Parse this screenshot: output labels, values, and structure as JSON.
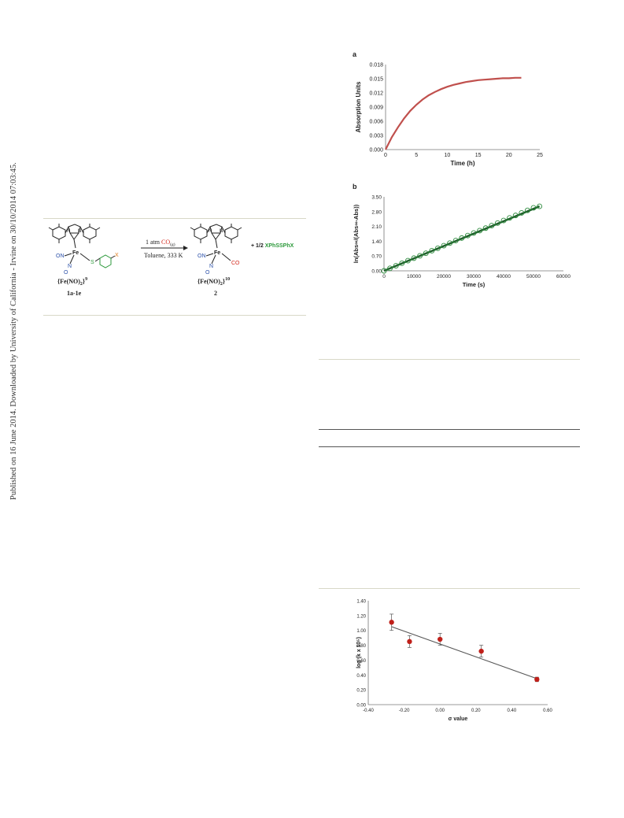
{
  "sidebar": {
    "text": "Published on 16 June 2014. Downloaded by University of California - Irvine on 30/10/2014 07:03:45."
  },
  "scheme": {
    "reagent_text": "1 atm ",
    "reagent_co": "CO",
    "reagent_sub": "(g)",
    "conditions": "Toluene, 333 K",
    "reactant_formula": "{Fe(NO)",
    "reactant_formula_tail": "2",
    "reactant_charge": "}",
    "reactant_count": "9",
    "reactant_label": "1a-1e",
    "product_formula": "{Fe(NO)",
    "product_formula_tail": "2",
    "product_charge": "}",
    "product_count": "10",
    "product_label": "2",
    "byproduct_prefix": "+ 1/2 ",
    "byproduct": "XPhSSPhX",
    "atom_fe": "Fe",
    "atom_on": "ON",
    "atom_n": "N",
    "atom_o": "O",
    "atom_s": "S",
    "atom_x": "X",
    "atom_co": "CO",
    "atom_n_ring": "N",
    "colors": {
      "blue": "#2a4fa8",
      "red": "#d42a1e",
      "green": "#2e9a3c",
      "orange": "#e07a1a"
    }
  },
  "chart_data": [
    {
      "panel_label": "a",
      "type": "line",
      "xlabel": "Time (h)",
      "ylabel": "Absorption Units",
      "xlim": [
        0,
        25
      ],
      "ylim": [
        0,
        0.018
      ],
      "x_ticks": [
        "0",
        "5",
        "10",
        "15",
        "20",
        "25"
      ],
      "y_ticks": [
        "0.000",
        "0.003",
        "0.006",
        "0.009",
        "0.012",
        "0.015",
        "0.018"
      ],
      "series": [
        {
          "color": "#c0504d",
          "x": [
            0,
            1,
            2,
            3,
            4,
            5,
            6,
            7,
            8,
            9,
            10,
            11,
            12,
            13,
            14,
            15,
            16,
            17,
            18,
            19,
            20,
            21,
            22
          ],
          "y": [
            0.0,
            0.0026,
            0.0047,
            0.0066,
            0.0082,
            0.0095,
            0.0106,
            0.0115,
            0.0122,
            0.0128,
            0.0133,
            0.0137,
            0.014,
            0.0143,
            0.0145,
            0.0147,
            0.0148,
            0.0149,
            0.015,
            0.0151,
            0.0151,
            0.0152,
            0.0152
          ]
        }
      ]
    },
    {
      "panel_label": "b",
      "type": "scatter",
      "xlabel": "Time (s)",
      "ylabel": "ln(Abs∞/(Abs∞-Abs))",
      "xlim": [
        0,
        60000
      ],
      "ylim": [
        0,
        3.5
      ],
      "x_ticks": [
        "0",
        "10000",
        "20000",
        "30000",
        "40000",
        "50000",
        "60000"
      ],
      "y_ticks": [
        "0.00",
        "0.70",
        "1.40",
        "2.10",
        "2.80",
        "3.50"
      ],
      "series": [
        {
          "color": "#2e8b3e",
          "x": [
            0,
            2000,
            4000,
            6000,
            8000,
            10000,
            12000,
            14000,
            16000,
            18000,
            20000,
            22000,
            24000,
            26000,
            28000,
            30000,
            32000,
            34000,
            36000,
            38000,
            40000,
            42000,
            44000,
            46000,
            48000,
            50000,
            52000
          ],
          "y": [
            0.0,
            0.12,
            0.24,
            0.36,
            0.48,
            0.6,
            0.71,
            0.83,
            0.95,
            1.07,
            1.19,
            1.31,
            1.43,
            1.55,
            1.67,
            1.79,
            1.9,
            2.02,
            2.14,
            2.26,
            2.38,
            2.5,
            2.62,
            2.74,
            2.86,
            2.98,
            3.05
          ]
        }
      ],
      "fit": {
        "x": [
          0,
          52000
        ],
        "y": [
          0.0,
          3.05
        ],
        "color": "#1f5e2a"
      }
    },
    {
      "panel_label": "",
      "type": "scatter",
      "xlabel": "σ value",
      "ylabel": "log (k x 10⁵)",
      "xlim": [
        -0.4,
        0.6
      ],
      "ylim": [
        0,
        1.4
      ],
      "x_ticks": [
        "-0.40",
        "-0.20",
        "0.00",
        "0.20",
        "0.40",
        "0.60"
      ],
      "y_ticks": [
        "0.00",
        "0.20",
        "0.40",
        "0.60",
        "0.80",
        "1.00",
        "1.20",
        "1.40"
      ],
      "series": [
        {
          "color": "#c0201a",
          "x": [
            -0.27,
            -0.17,
            0.0,
            0.23,
            0.54
          ],
          "y": [
            1.11,
            0.85,
            0.88,
            0.72,
            0.34
          ],
          "err": [
            0.11,
            0.08,
            0.08,
            0.08,
            0.03
          ]
        }
      ],
      "fit": {
        "x": [
          -0.27,
          0.54
        ],
        "y": [
          1.05,
          0.35
        ],
        "color": "#555555"
      }
    }
  ]
}
